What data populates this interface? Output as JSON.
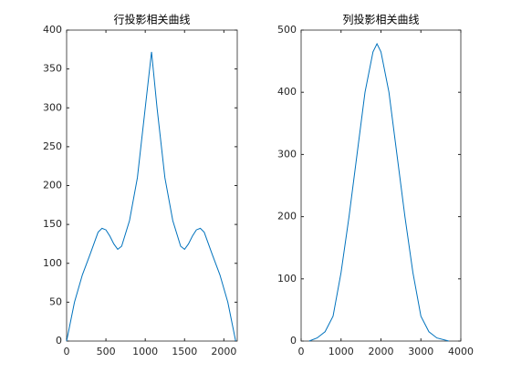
{
  "chart_data": [
    {
      "type": "line",
      "title": "行投影相关曲线",
      "x": [
        0,
        100,
        200,
        300,
        400,
        450,
        500,
        550,
        600,
        650,
        700,
        800,
        900,
        1000,
        1080,
        1150,
        1250,
        1350,
        1450,
        1500,
        1550,
        1600,
        1650,
        1700,
        1750,
        1850,
        1950,
        2050,
        2150
      ],
      "series": [
        {
          "color": "#0072bd",
          "values": [
            0,
            50,
            85,
            112,
            140,
            145,
            143,
            135,
            125,
            118,
            122,
            155,
            210,
            300,
            372,
            300,
            210,
            155,
            122,
            118,
            125,
            135,
            143,
            145,
            140,
            112,
            85,
            50,
            0
          ]
        }
      ],
      "xlim": [
        0,
        2170
      ],
      "xticks": [
        0,
        500,
        1000,
        1500,
        2000
      ],
      "ylim": [
        0,
        400
      ],
      "yticks": [
        0,
        50,
        100,
        150,
        200,
        250,
        300,
        350,
        400
      ]
    },
    {
      "type": "line",
      "title": "列投影相关曲线",
      "x": [
        200,
        400,
        600,
        800,
        1000,
        1200,
        1400,
        1600,
        1800,
        1900,
        2000,
        2200,
        2400,
        2600,
        2800,
        3000,
        3200,
        3400,
        3700
      ],
      "series": [
        {
          "color": "#0072bd",
          "values": [
            0,
            5,
            15,
            40,
            110,
            200,
            300,
            400,
            465,
            478,
            465,
            400,
            300,
            200,
            110,
            40,
            15,
            5,
            0
          ]
        }
      ],
      "xlim": [
        0,
        4000
      ],
      "xticks": [
        0,
        1000,
        2000,
        3000,
        4000
      ],
      "ylim": [
        0,
        500
      ],
      "yticks": [
        0,
        100,
        200,
        300,
        400,
        500
      ]
    }
  ]
}
